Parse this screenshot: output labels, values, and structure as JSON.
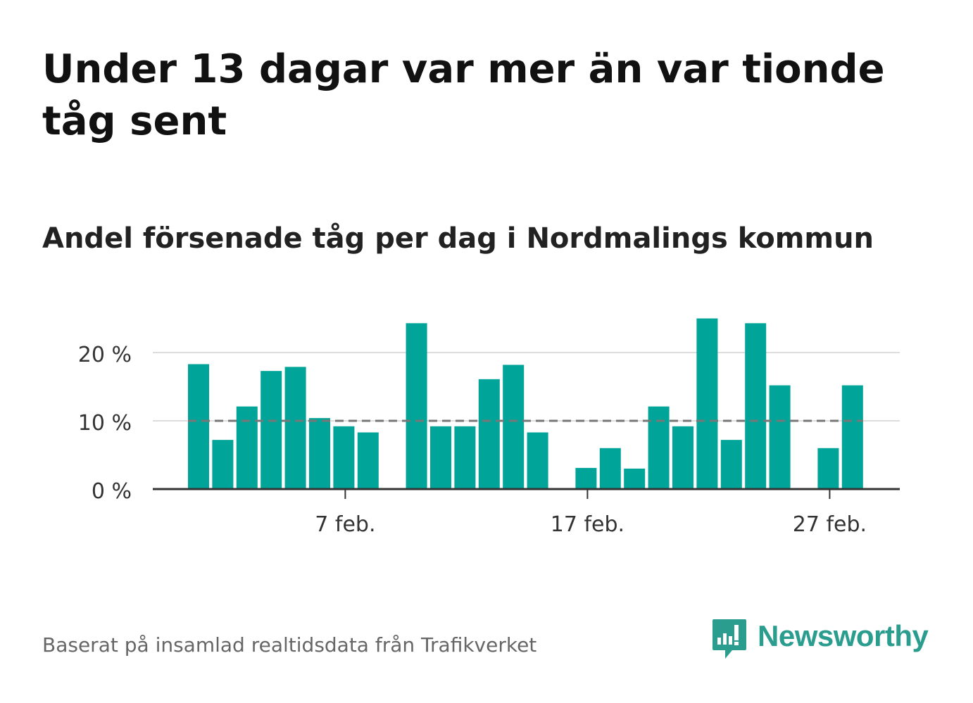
{
  "title": "Under 13 dagar var mer än var tionde tåg sent",
  "subtitle": "Andel försenade tåg per dag i Nordmalings kommun",
  "source": "Baserat på insamlad realtidsdata från Trafikverket",
  "logo": {
    "text": "Newsworthy",
    "icon": "newsworthy-logo-icon"
  },
  "colors": {
    "bar": "#00a499",
    "reference_line": "#777777",
    "grid": "#dddddd",
    "axis": "#333333",
    "logo": "#2a9d8f"
  },
  "chart_data": {
    "type": "bar",
    "x_unit": "day",
    "x": [
      "2/1",
      "2/2",
      "2/3",
      "2/4",
      "2/5",
      "2/6",
      "2/7",
      "2/8",
      "2/9",
      "2/10",
      "2/11",
      "2/12",
      "2/13",
      "2/14",
      "2/15",
      "2/16",
      "2/17",
      "2/18",
      "2/19",
      "2/20",
      "2/21",
      "2/22",
      "2/23",
      "2/24",
      "2/25",
      "2/26",
      "2/27",
      "2/28"
    ],
    "values": [
      18.3,
      7.2,
      12.1,
      17.3,
      17.9,
      10.4,
      9.2,
      8.3,
      null,
      24.3,
      9.2,
      9.2,
      16.1,
      18.2,
      8.3,
      null,
      3.1,
      6.0,
      3.0,
      12.1,
      9.2,
      25.0,
      7.2,
      24.3,
      15.2,
      null,
      6.0,
      15.2
    ],
    "value_unit": "%",
    "ylim": [
      0,
      26
    ],
    "y_ticks": [
      0,
      10,
      20
    ],
    "y_tick_labels": [
      "0 %",
      "10 %",
      "20 %"
    ],
    "x_ticks": [
      "2/7",
      "2/17",
      "2/27"
    ],
    "x_tick_labels": [
      "7 feb.",
      "17 feb.",
      "27 feb."
    ],
    "reference_line": 10,
    "grid": true
  }
}
